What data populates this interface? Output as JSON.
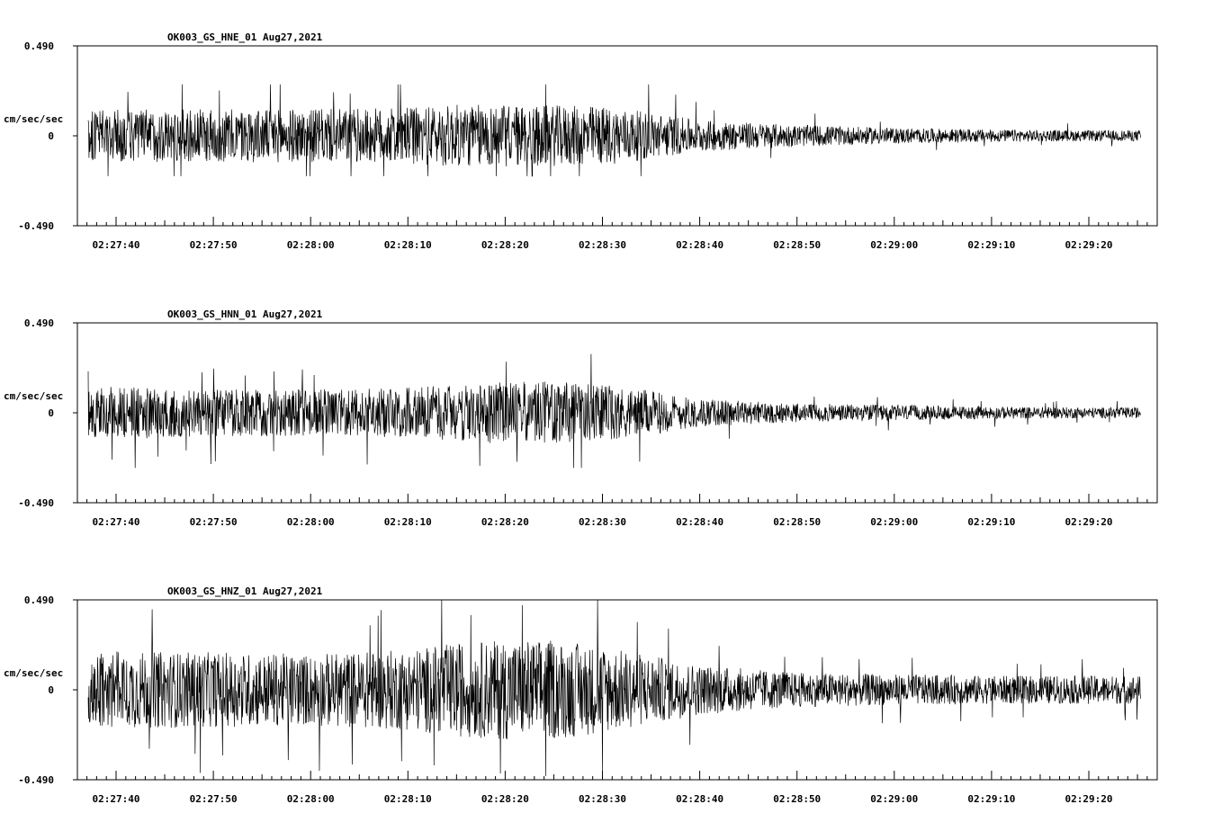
{
  "chart_data": [
    {
      "type": "line",
      "title": "OK003_GS_HNE_01  Aug27,2021",
      "ylabel": "cm/sec/sec",
      "ylim": [
        -0.49,
        0.49
      ],
      "y_ticks": [
        "0.490",
        "0",
        "-0.490"
      ],
      "x_ticks": [
        "02:27:40",
        "02:27:50",
        "02:28:00",
        "02:28:10",
        "02:28:20",
        "02:28:30",
        "02:28:40",
        "02:28:50",
        "02:29:00",
        "02:29:10",
        "02:29:20"
      ],
      "x_range": [
        "02:27:35",
        "02:29:26"
      ],
      "grid": false,
      "series": [
        {
          "envelope_time": [
            "02:27:37",
            "02:27:40",
            "02:27:50",
            "02:28:00",
            "02:28:10",
            "02:28:15",
            "02:28:20",
            "02:28:30",
            "02:28:35",
            "02:28:40",
            "02:28:50",
            "02:29:00",
            "02:29:10",
            "02:29:20",
            "02:29:25"
          ],
          "envelope_amplitude": [
            0.16,
            0.17,
            0.17,
            0.17,
            0.18,
            0.2,
            0.2,
            0.19,
            0.15,
            0.1,
            0.07,
            0.05,
            0.04,
            0.035,
            0.035
          ],
          "peak_min": -0.22,
          "peak_max": 0.28
        }
      ]
    },
    {
      "type": "line",
      "title": "OK003_GS_HNN_01  Aug27,2021",
      "ylabel": "cm/sec/sec",
      "ylim": [
        -0.49,
        0.49
      ],
      "y_ticks": [
        "0.490",
        "0",
        "-0.490"
      ],
      "x_ticks": [
        "02:27:40",
        "02:27:50",
        "02:28:00",
        "02:28:10",
        "02:28:20",
        "02:28:30",
        "02:28:40",
        "02:28:50",
        "02:29:00",
        "02:29:10",
        "02:29:20"
      ],
      "x_range": [
        "02:27:35",
        "02:29:26"
      ],
      "grid": false,
      "series": [
        {
          "envelope_time": [
            "02:27:37",
            "02:27:40",
            "02:27:50",
            "02:28:00",
            "02:28:10",
            "02:28:15",
            "02:28:20",
            "02:28:25",
            "02:28:30",
            "02:28:35",
            "02:28:40",
            "02:28:50",
            "02:29:00",
            "02:29:10",
            "02:29:20",
            "02:29:25"
          ],
          "envelope_amplitude": [
            0.15,
            0.17,
            0.15,
            0.15,
            0.16,
            0.18,
            0.2,
            0.2,
            0.18,
            0.14,
            0.09,
            0.06,
            0.05,
            0.04,
            0.035,
            0.035
          ],
          "peak_min": -0.3,
          "peak_max": 0.32
        }
      ]
    },
    {
      "type": "line",
      "title": "OK003_GS_HNZ_01  Aug27,2021",
      "ylabel": "cm/sec/sec",
      "ylim": [
        -0.49,
        0.49
      ],
      "y_ticks": [
        "0.490",
        "0",
        "-0.490"
      ],
      "x_ticks": [
        "02:27:40",
        "02:27:50",
        "02:28:00",
        "02:28:10",
        "02:28:20",
        "02:28:30",
        "02:28:40",
        "02:28:50",
        "02:29:00",
        "02:29:10",
        "02:29:20"
      ],
      "x_range": [
        "02:27:35",
        "02:29:26"
      ],
      "grid": false,
      "series": [
        {
          "envelope_time": [
            "02:27:37",
            "02:27:40",
            "02:27:50",
            "02:28:00",
            "02:28:10",
            "02:28:15",
            "02:28:20",
            "02:28:25",
            "02:28:30",
            "02:28:35",
            "02:28:40",
            "02:28:50",
            "02:29:00",
            "02:29:10",
            "02:29:20",
            "02:29:25"
          ],
          "envelope_amplitude": [
            0.23,
            0.25,
            0.24,
            0.23,
            0.26,
            0.3,
            0.32,
            0.32,
            0.28,
            0.22,
            0.16,
            0.11,
            0.1,
            0.09,
            0.09,
            0.09
          ],
          "peak_min": -0.47,
          "peak_max": 0.49
        }
      ]
    }
  ],
  "colors": {
    "trace": "#000000",
    "background": "#ffffff",
    "axis": "#000000"
  }
}
